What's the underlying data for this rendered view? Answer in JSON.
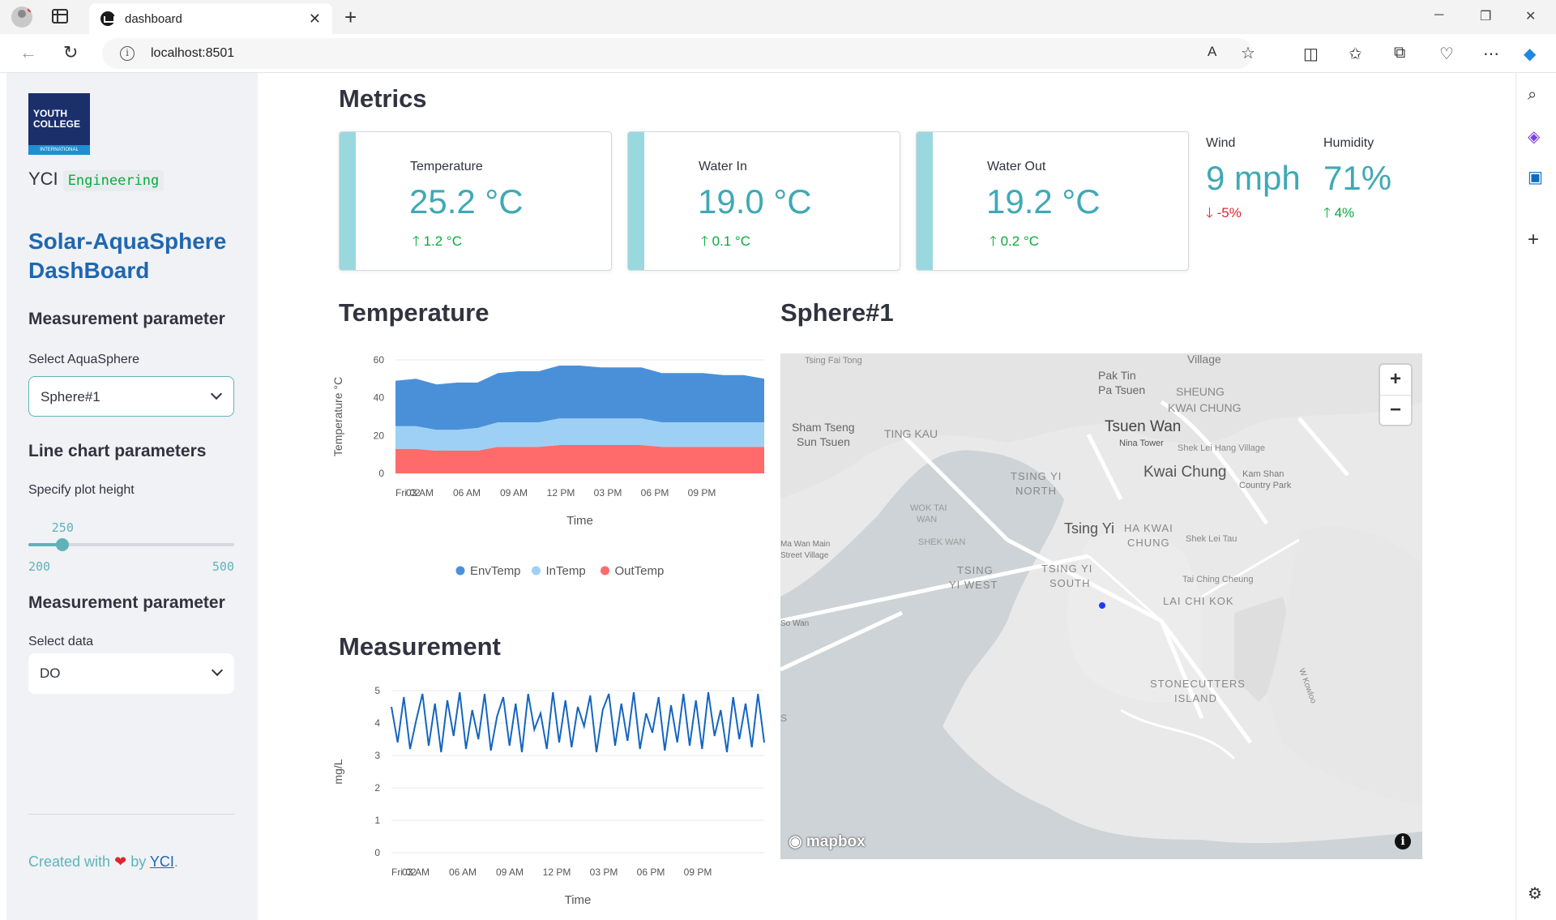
{
  "browser": {
    "tab_title": "dashboard",
    "url": "localhost:8501"
  },
  "sidebar": {
    "logo_line1": "YOUTH",
    "logo_line2": "COLLEGE",
    "logo_line3": "INTERNATIONAL",
    "brand": "YCI",
    "brand_code": "Engineering",
    "app_title": "Solar-AquaSphere DashBoard",
    "section1_heading": "Measurement parameter",
    "select_sphere_label": "Select AquaSphere",
    "select_sphere_value": "Sphere#1",
    "section2_heading": "Line chart parameters",
    "slider_label": "Specify plot height",
    "slider_value": 250,
    "slider_min": 200,
    "slider_max": 500,
    "section3_heading": "Measurement parameter",
    "select_data_label": "Select data",
    "select_data_value": "DO",
    "credit_prefix": "Created with",
    "credit_by": "by",
    "credit_link": "YCI",
    "credit_suffix": "."
  },
  "main": {
    "metrics_heading": "Metrics",
    "metrics": [
      {
        "label": "Temperature",
        "value": "25.2 °C",
        "delta": "1.2 °C",
        "direction": "up"
      },
      {
        "label": "Water In",
        "value": "19.0 °C",
        "delta": "0.1 °C",
        "direction": "up"
      },
      {
        "label": "Water Out",
        "value": "19.2 °C",
        "delta": "0.2 °C",
        "direction": "up"
      },
      {
        "label": "Wind",
        "value": "9 mph",
        "delta": "-5%",
        "direction": "down"
      },
      {
        "label": "Humidity",
        "value": "71%",
        "delta": "4%",
        "direction": "up"
      }
    ],
    "temperature_heading": "Temperature",
    "measurement_heading": "Measurement",
    "map_heading": "Sphere#1"
  },
  "chart_data": [
    {
      "type": "area",
      "stacked": true,
      "xlabel": "Time",
      "ylabel": "Temperature °C",
      "ylim": [
        0,
        60
      ],
      "yticks": [
        0,
        20,
        40,
        60
      ],
      "x_tick_labels": [
        "Fri 02",
        "03 AM",
        "06 AM",
        "09 AM",
        "12 PM",
        "03 PM",
        "06 PM",
        "09 PM"
      ],
      "legend_position": "bottom",
      "series": [
        {
          "name": "EnvTemp",
          "color": "#4a90d9",
          "values": [
            24,
            25,
            24,
            25,
            24,
            26,
            27,
            27,
            28,
            28,
            27,
            27,
            27,
            26,
            26,
            26,
            25,
            25,
            23
          ]
        },
        {
          "name": "InTemp",
          "color": "#9ed0f5",
          "values": [
            12,
            12,
            11,
            11,
            12,
            13,
            13,
            13,
            14,
            14,
            14,
            14,
            14,
            13,
            13,
            13,
            13,
            13,
            13
          ]
        },
        {
          "name": "OutTemp",
          "color": "#ff6b6b",
          "values": [
            13,
            13,
            12,
            12,
            12,
            14,
            14,
            14,
            15,
            15,
            15,
            15,
            15,
            14,
            14,
            14,
            14,
            14,
            14
          ]
        }
      ]
    },
    {
      "type": "line",
      "xlabel": "Time",
      "ylabel": "mg/L",
      "ylim": [
        0,
        5
      ],
      "yticks": [
        0,
        1,
        2,
        3,
        4,
        5
      ],
      "x_tick_labels": [
        "Fri 02",
        "03 AM",
        "06 AM",
        "09 AM",
        "12 PM",
        "03 PM",
        "06 PM",
        "09 PM"
      ],
      "series": [
        {
          "name": "DO",
          "color": "#1565c0",
          "values": [
            4.5,
            3.4,
            4.8,
            3.2,
            4.1,
            4.9,
            3.3,
            4.6,
            3.1,
            4.7,
            3.6,
            4.95,
            3.2,
            4.4,
            3.5,
            4.9,
            3.15,
            4.2,
            4.8,
            3.3,
            4.6,
            3.1,
            4.9,
            3.8,
            4.3,
            3.2,
            4.95,
            3.4,
            4.7,
            3.25,
            4.5,
            3.9,
            4.85,
            3.1,
            4.4,
            4.9,
            3.3,
            4.6,
            3.45,
            4.95,
            3.2,
            4.3,
            3.7,
            4.8,
            3.15,
            4.55,
            3.4,
            4.9,
            3.3,
            4.7,
            3.2,
            4.95,
            3.6,
            4.4,
            3.1,
            4.8,
            3.5,
            4.6,
            3.25,
            4.9,
            3.4
          ]
        }
      ]
    }
  ],
  "map": {
    "labels": [
      "Tsing Fai Tong",
      "Village",
      "Pak Tin",
      "Pa Tsuen",
      "SHEUNG",
      "KWAI CHUNG",
      "Tsuen Wan",
      "Nina Tower",
      "Sham Tseng",
      "Sun Tsuen",
      "TING KAU",
      "TSING YI",
      "NORTH",
      "Kwai Chung",
      "Shek Lei Hang Village",
      "Kam Shan",
      "Country Park",
      "WOK TAI",
      "WAN",
      "Tsing Yi",
      "HA KWAI",
      "CHUNG",
      "Ma Wan Main",
      "Street Village",
      "SHEK WAN",
      "Shek Lei Tau",
      "TSING",
      "YI WEST",
      "TSING YI",
      "SOUTH",
      "Tai Ching Cheung",
      "LAI CHI KOK",
      "So Wan",
      "STONECUTTERS",
      "ISLAND",
      "W Kowloo",
      "S"
    ],
    "attribution": "mapbox",
    "zoom_in": "+",
    "zoom_out": "−"
  }
}
